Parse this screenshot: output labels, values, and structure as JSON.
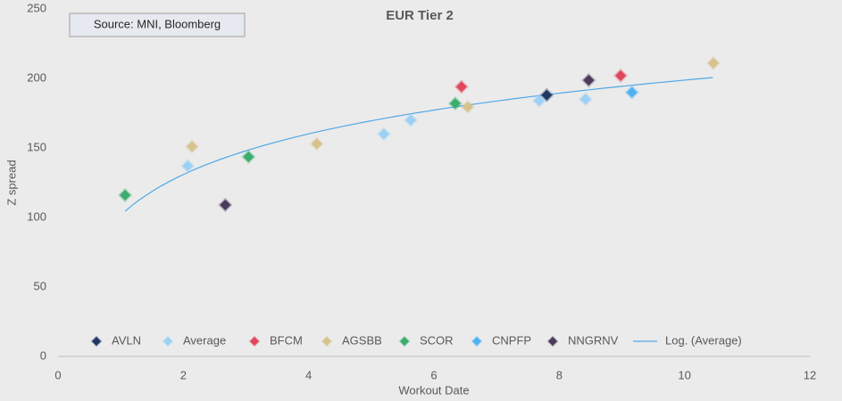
{
  "chart_data": {
    "type": "scatter",
    "title": "EUR Tier 2",
    "annotation": "Source: MNI, Bloomberg",
    "x_label": "Workout Date",
    "y_label": "Z spread",
    "xlim": [
      0,
      12
    ],
    "xticks": [
      0,
      2,
      4,
      6,
      8,
      10,
      12
    ],
    "ylim": [
      0,
      250
    ],
    "yticks": [
      0,
      50,
      100,
      150,
      200,
      250
    ],
    "grid": false,
    "legend": "bottom",
    "series": [
      {
        "name": "AVLN",
        "color": "#1f3864",
        "x": [
          7.8
        ],
        "values": [
          188
        ]
      },
      {
        "name": "Average",
        "color": "#9dd0f5",
        "x": [
          2.07,
          5.2,
          5.63,
          7.68,
          8.42
        ],
        "values": [
          137,
          160,
          170,
          184,
          185
        ]
      },
      {
        "name": "BFCM",
        "color": "#e0475b",
        "x": [
          6.44,
          8.98
        ],
        "values": [
          194,
          202
        ]
      },
      {
        "name": "AGSBB",
        "color": "#d8c28e",
        "x": [
          2.14,
          4.13,
          6.54,
          10.46
        ],
        "values": [
          151,
          153,
          179.5,
          211
        ]
      },
      {
        "name": "SCOR",
        "color": "#3cad6e",
        "x": [
          1.07,
          3.04,
          6.34
        ],
        "values": [
          116,
          143.6,
          182
        ]
      },
      {
        "name": "CNPFP",
        "color": "#4fb3f0",
        "x": [
          9.16
        ],
        "values": [
          190
        ]
      },
      {
        "name": "NNGRNV",
        "color": "#4b3a5c",
        "x": [
          2.67,
          8.47
        ],
        "values": [
          109,
          198.7
        ]
      }
    ],
    "trendline": {
      "name": "Log. (Average)",
      "color": "#4fa8e6",
      "a": 42.2,
      "b": 101.6,
      "xrange": [
        1.07,
        10.45
      ]
    }
  }
}
